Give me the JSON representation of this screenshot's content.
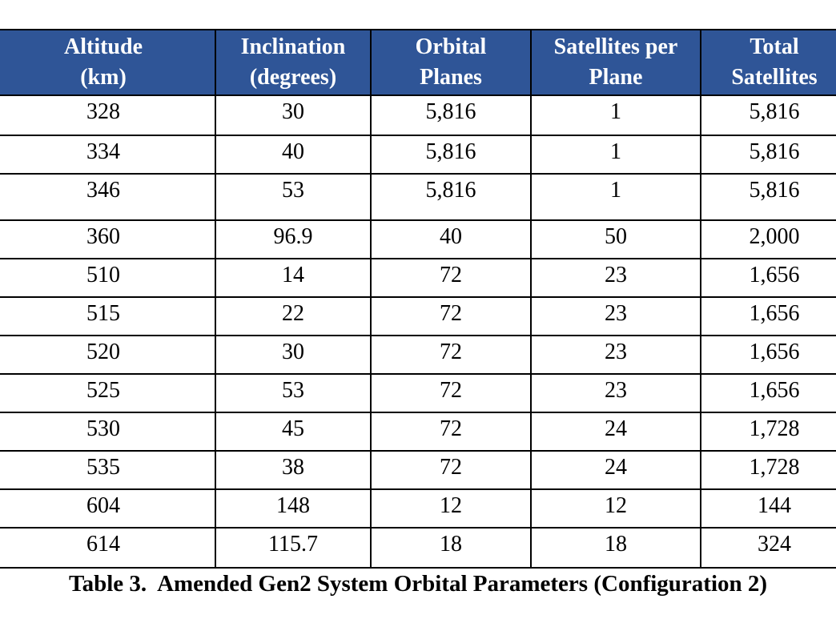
{
  "table": {
    "columns": [
      [
        "Altitude",
        "(km)"
      ],
      [
        "Inclination",
        "(degrees)"
      ],
      [
        "Orbital",
        "Planes"
      ],
      [
        "Satellites per",
        "Plane"
      ],
      [
        "Total",
        "Satellites"
      ]
    ],
    "rows": [
      [
        "328",
        "30",
        "5,816",
        "1",
        "5,816"
      ],
      [
        "334",
        "40",
        "5,816",
        "1",
        "5,816"
      ],
      [
        "346",
        "53",
        "5,816",
        "1",
        "5,816"
      ],
      [
        "360",
        "96.9",
        "40",
        "50",
        "2,000"
      ],
      [
        "510",
        "14",
        "72",
        "23",
        "1,656"
      ],
      [
        "515",
        "22",
        "72",
        "23",
        "1,656"
      ],
      [
        "520",
        "30",
        "72",
        "23",
        "1,656"
      ],
      [
        "525",
        "53",
        "72",
        "23",
        "1,656"
      ],
      [
        "530",
        "45",
        "72",
        "24",
        "1,728"
      ],
      [
        "535",
        "38",
        "72",
        "24",
        "1,728"
      ],
      [
        "604",
        "148",
        "12",
        "12",
        "144"
      ],
      [
        "614",
        "115.7",
        "18",
        "18",
        "324"
      ]
    ]
  },
  "caption": "Table 3.  Amended Gen2 System Orbital Parameters (Configuration 2)"
}
